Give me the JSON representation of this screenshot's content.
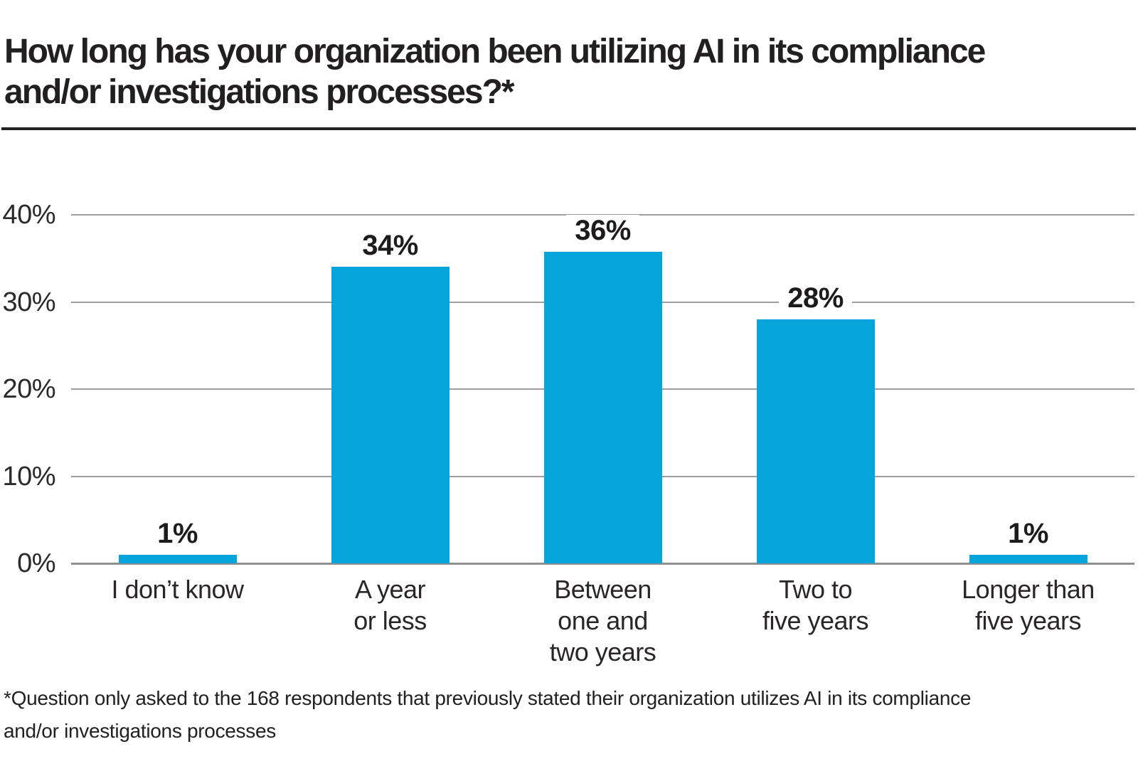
{
  "title": "How long has your organization been utilizing AI in its compliance\nand/or investigations processes?*",
  "footnote": "*Question only asked to the 168 respondents that previously stated their organization utilizes AI in its compliance\nand/or investigations processes",
  "colors": {
    "bar": "#05a5dc",
    "gridline": "#9e9e9e",
    "baseline": "#8d8f90",
    "divider": "#242122",
    "text": "#221f20"
  },
  "chart_data": {
    "type": "bar",
    "title": "How long has your organization been utilizing AI in its compliance and/or investigations processes?*",
    "categories": [
      "I don’t know",
      "A year\nor less",
      "Between\none and\ntwo years",
      "Two to\nfive years",
      "Longer than\nfive years"
    ],
    "values": [
      1,
      34,
      36,
      28,
      1
    ],
    "value_labels": [
      "1%",
      "34%",
      "36%",
      "28%",
      "1%"
    ],
    "xlabel": "",
    "ylabel": "",
    "ylim": [
      0,
      40
    ],
    "y_ticks": [
      "0%",
      "10%",
      "20%",
      "30%",
      "40%"
    ],
    "grid": "horizontal",
    "legend": "none",
    "footnote": "*Question only asked to the 168 respondents that previously stated their organization utilizes AI in its compliance and/or investigations processes"
  }
}
